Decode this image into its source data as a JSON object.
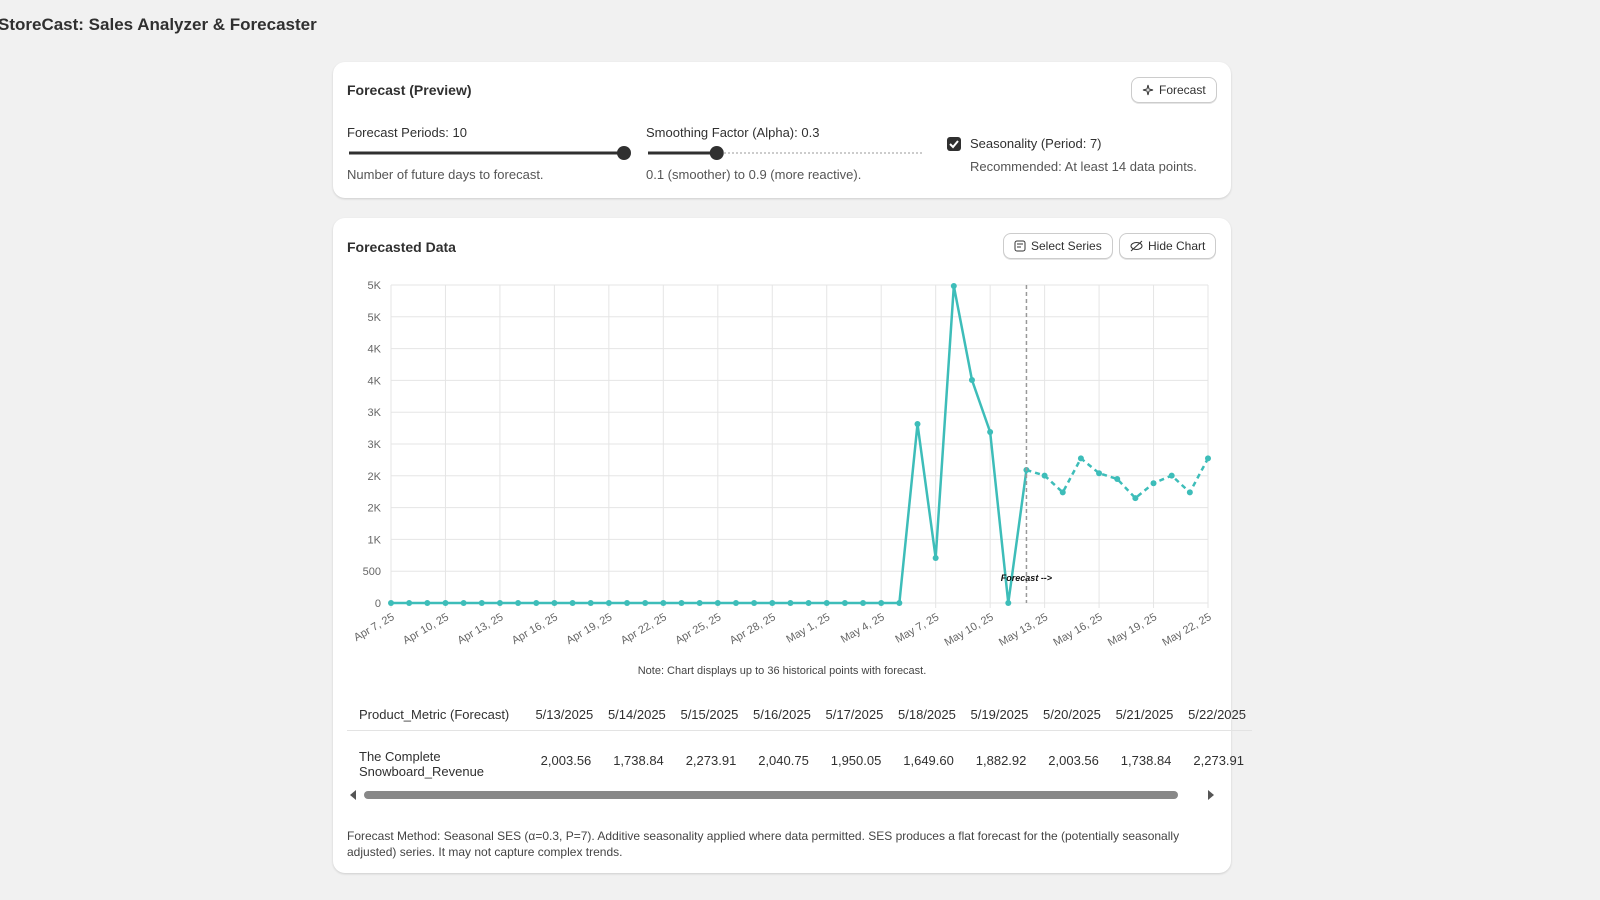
{
  "header": {
    "title": "StoreCast: Sales Analyzer & Forecaster"
  },
  "settings": {
    "title": "Forecast (Preview)",
    "button": "Forecast",
    "periods": {
      "label": "Forecast Periods: 10",
      "help": "Number of future days to forecast.",
      "value": 10,
      "min": 1,
      "max": 10
    },
    "alpha": {
      "label": "Smoothing Factor (Alpha): 0.3",
      "help": "0.1 (smoother) to 0.9 (more reactive).",
      "value": 0.3,
      "min": 0.1,
      "max": 0.9
    },
    "seasonality": {
      "label": "Seasonality (Period: 7)",
      "help": "Recommended: At least 14 data points.",
      "checked": true
    }
  },
  "chart_section": {
    "title": "Forecasted Data",
    "buttons": [
      "Select Series",
      "Hide Chart"
    ],
    "note": "Note: Chart displays up to 36 historical points with forecast."
  },
  "chart_data": {
    "type": "line",
    "categories": [
      "Apr 7, 25",
      null,
      null,
      "Apr 10, 25",
      null,
      null,
      "Apr 13, 25",
      null,
      null,
      "Apr 16, 25",
      null,
      null,
      "Apr 19, 25",
      null,
      null,
      "Apr 22, 25",
      null,
      null,
      "Apr 25, 25",
      null,
      null,
      "Apr 28, 25",
      null,
      null,
      "May 1, 25",
      null,
      null,
      "May 4, 25",
      null,
      null,
      "May 7, 25",
      null,
      null,
      "May 10, 25",
      null,
      null,
      "May 13, 25",
      null,
      null,
      "May 16, 25",
      null,
      null,
      "May 19, 25",
      null,
      null,
      "May 22, 25"
    ],
    "series": [
      {
        "color": "#3dbdb9",
        "dashed": false,
        "values": [
          0,
          0,
          0,
          0,
          0,
          0,
          0,
          0,
          0,
          0,
          0,
          0,
          0,
          0,
          0,
          0,
          0,
          0,
          0,
          0,
          0,
          0,
          0,
          0,
          0,
          0,
          0,
          0,
          0,
          2814,
          708,
          4984,
          3506,
          2689,
          0,
          2091,
          null,
          null,
          null,
          null,
          null,
          null,
          null,
          null,
          null,
          null
        ]
      },
      {
        "color": "#3dbdb9",
        "dashed": true,
        "values": [
          null,
          null,
          null,
          null,
          null,
          null,
          null,
          null,
          null,
          null,
          null,
          null,
          null,
          null,
          null,
          null,
          null,
          null,
          null,
          null,
          null,
          null,
          null,
          null,
          null,
          null,
          null,
          null,
          null,
          null,
          null,
          null,
          null,
          null,
          null,
          null,
          2003.56,
          1738.84,
          2273.91,
          2040.75,
          1950.05,
          1649.6,
          1882.92,
          2003.56,
          1738.84,
          2273.91
        ]
      }
    ],
    "ylim": [
      0,
      5000
    ],
    "yticks": [
      0,
      500,
      {
        "value": 1000,
        "label": "1K"
      },
      {
        "value": 1500,
        "label": "2K"
      },
      {
        "value": 2000,
        "label": "2K"
      },
      {
        "value": 2500,
        "label": "3K"
      },
      {
        "value": 3000,
        "label": "3K"
      },
      {
        "value": 3500,
        "label": "4K"
      },
      {
        "value": 4000,
        "label": "4K"
      },
      {
        "value": 4500,
        "label": "5K"
      },
      {
        "value": 5000,
        "label": "5K"
      }
    ],
    "grid": true,
    "annotation": {
      "text": "Forecast -->",
      "category_index": 35
    }
  },
  "table": {
    "header": [
      "Product_Metric (Forecast)",
      "5/13/2025",
      "5/14/2025",
      "5/15/2025",
      "5/16/2025",
      "5/17/2025",
      "5/18/2025",
      "5/19/2025",
      "5/20/2025",
      "5/21/2025",
      "5/22/2025"
    ],
    "rows": [
      [
        "The Complete Snowboard_Revenue",
        "2,003.56",
        "1,738.84",
        "2,273.91",
        "2,040.75",
        "1,950.05",
        "1,649.60",
        "1,882.92",
        "2,003.56",
        "1,738.84",
        "2,273.91"
      ]
    ]
  },
  "footnote": "Forecast Method: Seasonal SES (α=0.3, P=7). Additive seasonality applied where data permitted. SES produces a flat forecast for the (potentially seasonally adjusted) series. It may not capture complex trends."
}
